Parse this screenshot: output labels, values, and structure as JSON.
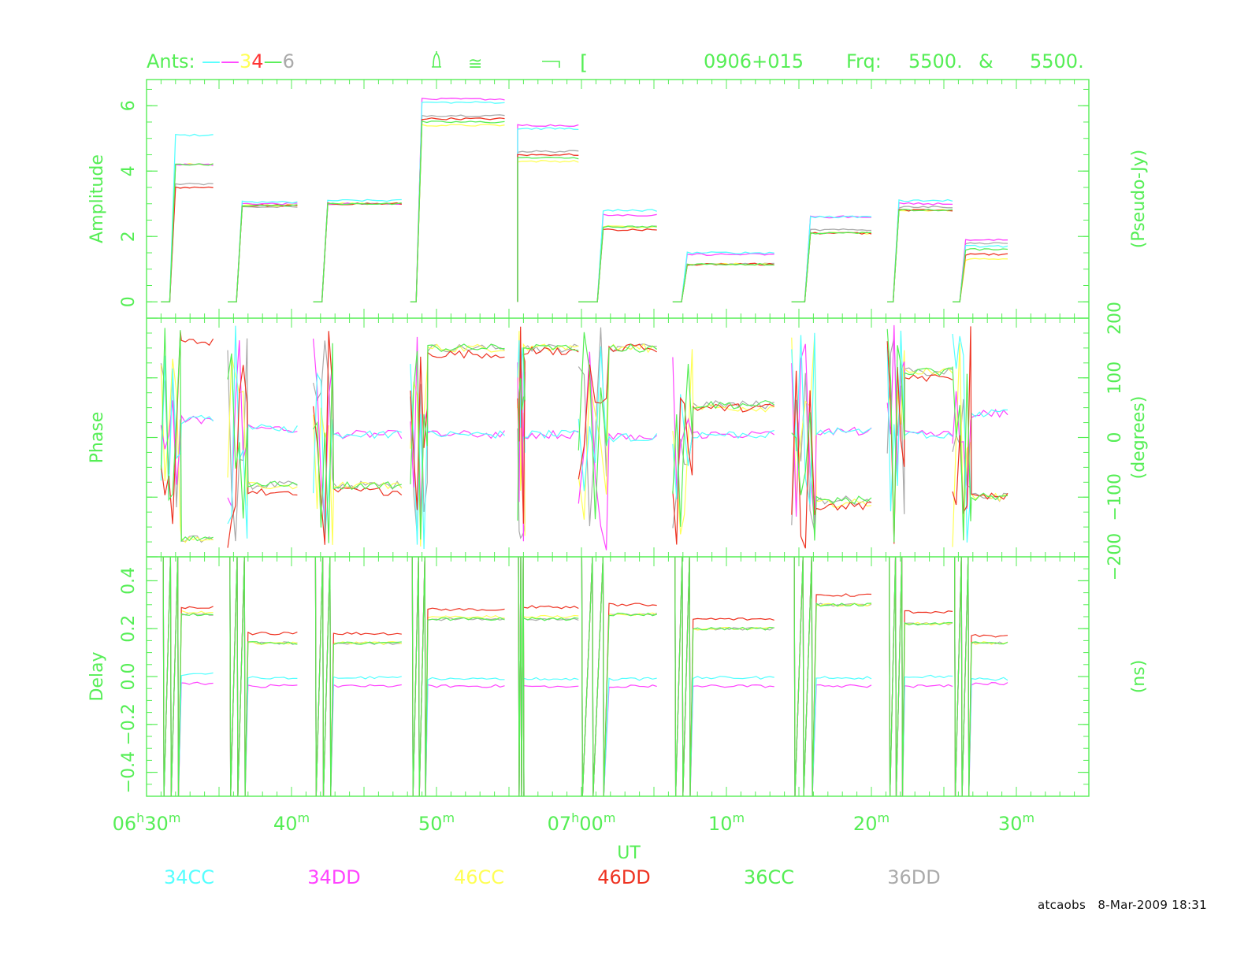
{
  "header": {
    "ants_label": "Ants:",
    "ants_parts": [
      {
        "text": "—",
        "color": "#55ffff"
      },
      {
        "text": "—",
        "color": "#ff44ff"
      },
      {
        "text": "3",
        "color": "#ffff55"
      },
      {
        "text": "4",
        "color": "#ff3333"
      },
      {
        "text": "—",
        "color": "#55ee55"
      },
      {
        "text": "6",
        "color": "#aaaaaa"
      }
    ],
    "symbols": [
      "bell-icon",
      "approx-equal-icon",
      "corner-bracket-icon",
      "open-bracket-icon"
    ],
    "source": "0906+015",
    "freq_label": "Frq:",
    "freq1": "5500.",
    "freq_sep": "&",
    "freq2": "5500."
  },
  "footer": {
    "user": "atcaobs",
    "date": "8-Mar-2009 18:31"
  },
  "colors": {
    "axis": "#55ee55",
    "34CC": "#55ffff",
    "34DD": "#ff44ff",
    "46CC": "#ffff55",
    "46DD": "#ee3322",
    "36CC": "#55ee55",
    "36DD": "#aaaaaa"
  },
  "chart_data": {
    "type": "line",
    "x_axis": {
      "label": "UT",
      "range_minutes": [
        0,
        65
      ],
      "tick_labels": [
        {
          "min": 0,
          "major": "06",
          "unit": "h",
          "minor": "30",
          "sup": "m"
        },
        {
          "min": 10,
          "major": "",
          "unit": "",
          "minor": "40",
          "sup": "m"
        },
        {
          "min": 20,
          "major": "",
          "unit": "",
          "minor": "50",
          "sup": "m"
        },
        {
          "min": 30,
          "major": "07",
          "unit": "h",
          "minor": "00",
          "sup": "m"
        },
        {
          "min": 40,
          "major": "",
          "unit": "",
          "minor": "10",
          "sup": "m"
        },
        {
          "min": 50,
          "major": "",
          "unit": "",
          "minor": "20",
          "sup": "m"
        },
        {
          "min": 60,
          "major": "",
          "unit": "",
          "minor": "30",
          "sup": "m"
        }
      ]
    },
    "panels": [
      {
        "name": "Amplitude",
        "ylabel": "Amplitude",
        "unit_label": "(Pseudo-Jy)",
        "ylim": [
          -0.5,
          6.8
        ],
        "ticks": [
          0,
          2,
          4,
          6
        ],
        "tick_labels": [
          "0",
          "2",
          "4",
          "6"
        ],
        "tick_side": "left"
      },
      {
        "name": "Phase",
        "ylabel": "Phase",
        "unit_label": "(degrees)",
        "ylim": [
          -200,
          200
        ],
        "ticks": [
          -200,
          -100,
          0,
          100,
          200
        ],
        "tick_labels": [
          "−200",
          "−100",
          "0",
          "100",
          "200"
        ],
        "tick_side": "right"
      },
      {
        "name": "Delay",
        "ylabel": "Delay",
        "unit_label": "(ns)",
        "ylim": [
          -0.5,
          0.5
        ],
        "ticks": [
          -0.4,
          -0.2,
          0,
          0.2,
          0.4
        ],
        "tick_labels": [
          "−0.4",
          "−0.2",
          "0.0",
          "0.2",
          "0.4"
        ],
        "tick_side": "left"
      }
    ],
    "series": [
      {
        "name": "34CC",
        "baseline": "34"
      },
      {
        "name": "34DD",
        "baseline": "34"
      },
      {
        "name": "46CC",
        "baseline": "46"
      },
      {
        "name": "46DD",
        "baseline": "46"
      },
      {
        "name": "36CC",
        "baseline": "36"
      },
      {
        "name": "36DD",
        "baseline": "36"
      }
    ],
    "scans": [
      {
        "start": 1.0,
        "rise": 2.0,
        "end": 4.6,
        "amp": {
          "34CC": 5.1,
          "34DD": 4.2,
          "46CC": 4.2,
          "46DD": 3.5,
          "36CC": 4.2,
          "36DD": 3.6
        },
        "phase": {
          "34CC": 30,
          "34DD": 30,
          "46CC": -170,
          "46DD": 160,
          "36CC": -170,
          "36DD": -170
        },
        "delay": {
          "34CC": 0.01,
          "34DD": -0.03,
          "46CC": 0.27,
          "46DD": 0.29,
          "36CC": 0.26,
          "36DD": 0.26
        }
      },
      {
        "start": 5.6,
        "rise": 6.6,
        "end": 10.4,
        "amp": {
          "34CC": 3.05,
          "34DD": 3.0,
          "46CC": 2.95,
          "46DD": 2.95,
          "36CC": 2.95,
          "36DD": 2.9
        },
        "phase": {
          "34CC": 15,
          "34DD": 15,
          "46CC": -80,
          "46DD": -90,
          "36CC": -80,
          "36DD": -80
        },
        "delay": {
          "34CC": -0.005,
          "34DD": -0.04,
          "46CC": 0.14,
          "46DD": 0.18,
          "36CC": 0.14,
          "36DD": 0.14
        }
      },
      {
        "start": 11.5,
        "rise": 12.5,
        "end": 17.6,
        "amp": {
          "34CC": 3.1,
          "34DD": 3.0,
          "46CC": 3.0,
          "46DD": 3.0,
          "36CC": 3.0,
          "36DD": 3.0
        },
        "phase": {
          "34CC": 5,
          "34DD": 5,
          "46CC": -80,
          "46DD": -90,
          "36CC": -80,
          "36DD": -80
        },
        "delay": {
          "34CC": -0.005,
          "34DD": -0.04,
          "46CC": 0.14,
          "46DD": 0.18,
          "36CC": 0.14,
          "36DD": 0.14
        }
      },
      {
        "start": 18.2,
        "rise": 19.0,
        "end": 24.7,
        "amp": {
          "34CC": 6.1,
          "34DD": 6.2,
          "46CC": 5.4,
          "46DD": 5.6,
          "36CC": 5.5,
          "36DD": 5.7
        },
        "phase": {
          "34CC": 5,
          "34DD": 5,
          "46CC": 150,
          "46DD": 140,
          "36CC": 150,
          "36DD": 150
        },
        "delay": {
          "34CC": -0.01,
          "34DD": -0.04,
          "46CC": 0.25,
          "46DD": 0.28,
          "36CC": 0.24,
          "36DD": 0.24
        }
      },
      {
        "start": 25.6,
        "rise": 25.6,
        "end": 29.8,
        "amp": {
          "34CC": 5.3,
          "34DD": 5.4,
          "46CC": 4.3,
          "46DD": 4.5,
          "36CC": 4.4,
          "36DD": 4.6
        },
        "phase": {
          "34CC": 5,
          "34DD": 5,
          "46CC": 150,
          "46DD": 145,
          "36CC": 150,
          "36DD": 150
        },
        "delay": {
          "34CC": -0.01,
          "34DD": -0.04,
          "46CC": 0.25,
          "46DD": 0.29,
          "36CC": 0.24,
          "36DD": 0.24
        }
      },
      {
        "start": 29.8,
        "rise": 31.5,
        "end": 35.2,
        "amp": {
          "34CC": 2.8,
          "34DD": 2.65,
          "46CC": 2.3,
          "46DD": 2.2,
          "36CC": 2.3,
          "36DD": 2.3
        },
        "phase": {
          "34CC": 0,
          "34DD": 0,
          "46CC": 150,
          "46DD": 150,
          "36CC": 150,
          "36DD": 150
        },
        "delay": {
          "34CC": -0.01,
          "34DD": -0.04,
          "46CC": 0.26,
          "46DD": 0.3,
          "36CC": 0.26,
          "36DD": 0.26
        }
      },
      {
        "start": 36.3,
        "rise": 37.3,
        "end": 43.3,
        "amp": {
          "34CC": 1.5,
          "34DD": 1.45,
          "46CC": 1.15,
          "46DD": 1.15,
          "36CC": 1.15,
          "36DD": 1.15
        },
        "phase": {
          "34CC": 5,
          "34DD": 5,
          "46CC": 50,
          "46DD": 50,
          "36CC": 55,
          "36DD": 55
        },
        "delay": {
          "34CC": -0.005,
          "34DD": -0.04,
          "46CC": 0.2,
          "46DD": 0.24,
          "36CC": 0.2,
          "36DD": 0.2
        }
      },
      {
        "start": 44.5,
        "rise": 45.8,
        "end": 50.0,
        "amp": {
          "34CC": 2.6,
          "34DD": 2.6,
          "46CC": 2.1,
          "46DD": 2.1,
          "36CC": 2.1,
          "36DD": 2.2
        },
        "phase": {
          "34CC": 10,
          "34DD": 10,
          "46CC": -110,
          "46DD": -115,
          "36CC": -105,
          "36DD": -105
        },
        "delay": {
          "34CC": -0.005,
          "34DD": -0.04,
          "46CC": 0.3,
          "46DD": 0.34,
          "36CC": 0.3,
          "36DD": 0.3
        }
      },
      {
        "start": 51.1,
        "rise": 51.9,
        "end": 55.6,
        "amp": {
          "34CC": 3.1,
          "34DD": 3.0,
          "46CC": 2.8,
          "46DD": 2.8,
          "36CC": 2.8,
          "36DD": 2.9
        },
        "phase": {
          "34CC": 5,
          "34DD": 5,
          "46CC": 110,
          "46DD": 100,
          "36CC": 110,
          "36DD": 110
        },
        "delay": {
          "34CC": 0.0,
          "34DD": -0.04,
          "46CC": 0.22,
          "46DD": 0.27,
          "36CC": 0.22,
          "36DD": 0.22
        }
      },
      {
        "start": 55.6,
        "rise": 56.5,
        "end": 59.4,
        "amp": {
          "34CC": 1.7,
          "34DD": 1.9,
          "46CC": 1.3,
          "46DD": 1.45,
          "36CC": 1.6,
          "36DD": 1.8
        },
        "phase": {
          "34CC": 40,
          "34DD": 40,
          "46CC": -100,
          "46DD": -100,
          "36CC": -100,
          "36DD": -100
        },
        "delay": {
          "34CC": -0.01,
          "34DD": -0.03,
          "46CC": 0.14,
          "46DD": 0.17,
          "36CC": 0.14,
          "36DD": 0.14
        }
      }
    ]
  }
}
